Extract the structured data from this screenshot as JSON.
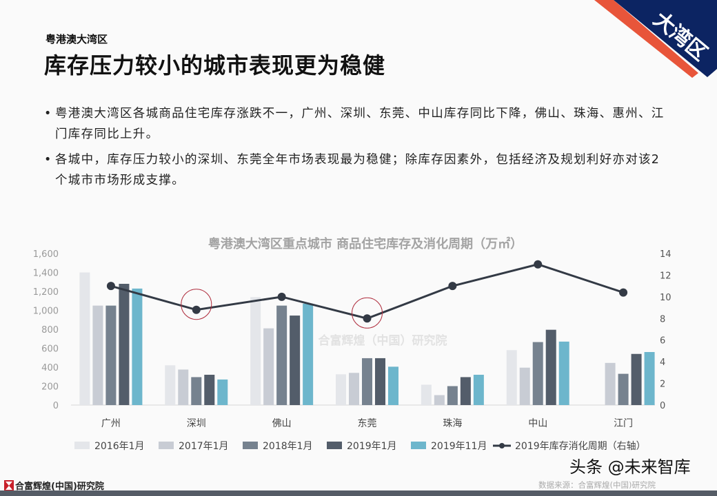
{
  "header": {
    "kicker": "粤港澳大湾区",
    "title": "库存压力较小的城市表现更为稳健",
    "corner_badge": "大湾区",
    "corner_colors": {
      "navy": "#0c2462",
      "red": "#e8553a"
    }
  },
  "bullets": [
    {
      "marker": "•",
      "text": "粤港澳大湾区各城商品住宅库存涨跌不一，广州、深圳、东莞、中山库存同比下降，佛山、珠海、惠州、江门库存同比上升。"
    },
    {
      "marker": "•",
      "text": "各城中，库存压力较小的深圳、东莞全年市场表现最为稳健；除库存因素外，包括经济及规划利好亦对该2个城市市场形成支撑。"
    }
  ],
  "chart_data": {
    "type": "bar",
    "title": "粤港澳大湾区重点城市 商品住宅库存及消化周期（万㎡）",
    "watermark": "合富辉煌（中国）研究院",
    "categories": [
      "广州",
      "深圳",
      "佛山",
      "东莞",
      "珠海",
      "中山",
      "江门"
    ],
    "ylim": [
      0,
      1600
    ],
    "yticks": [
      "0",
      "200",
      "400",
      "600",
      "800",
      "1,000",
      "1,200",
      "1,400",
      "1,600"
    ],
    "y2lim": [
      0,
      14
    ],
    "y2ticks": [
      "0",
      "2",
      "4",
      "6",
      "8",
      "10",
      "12",
      "14"
    ],
    "grid": false,
    "legend_placement": "bottom",
    "series": [
      {
        "name": "2016年1月",
        "type": "bar",
        "color": "#e4e6ea",
        "values": [
          1400,
          420,
          1140,
          325,
          215,
          580,
          null
        ]
      },
      {
        "name": "2017年1月",
        "type": "bar",
        "color": "#c8ccd4",
        "values": [
          1050,
          375,
          810,
          340,
          105,
          395,
          445
        ]
      },
      {
        "name": "2018年1月",
        "type": "bar",
        "color": "#76828f",
        "values": [
          1050,
          295,
          1050,
          495,
          200,
          665,
          330
        ]
      },
      {
        "name": "2019年1月",
        "type": "bar",
        "color": "#535d6a",
        "values": [
          1280,
          320,
          945,
          495,
          295,
          795,
          540
        ]
      },
      {
        "name": "2019年11月",
        "type": "bar",
        "color": "#6db6cc",
        "values": [
          1230,
          270,
          1070,
          405,
          320,
          670,
          560
        ]
      },
      {
        "name": "2019年库存消化周期（右轴）",
        "type": "line",
        "axis": "right",
        "color": "#333a45",
        "values": [
          11.0,
          8.8,
          10.0,
          8.0,
          11.0,
          13.0,
          10.4
        ]
      }
    ],
    "highlighted_categories": [
      "深圳",
      "东莞"
    ],
    "highlight_color": "#b03040"
  },
  "footer": {
    "logo_text": "合富辉煌(中国)研究院",
    "watermark": "头条 @未来智库",
    "source": "数据来源：合富辉煌(中国)研究院"
  }
}
